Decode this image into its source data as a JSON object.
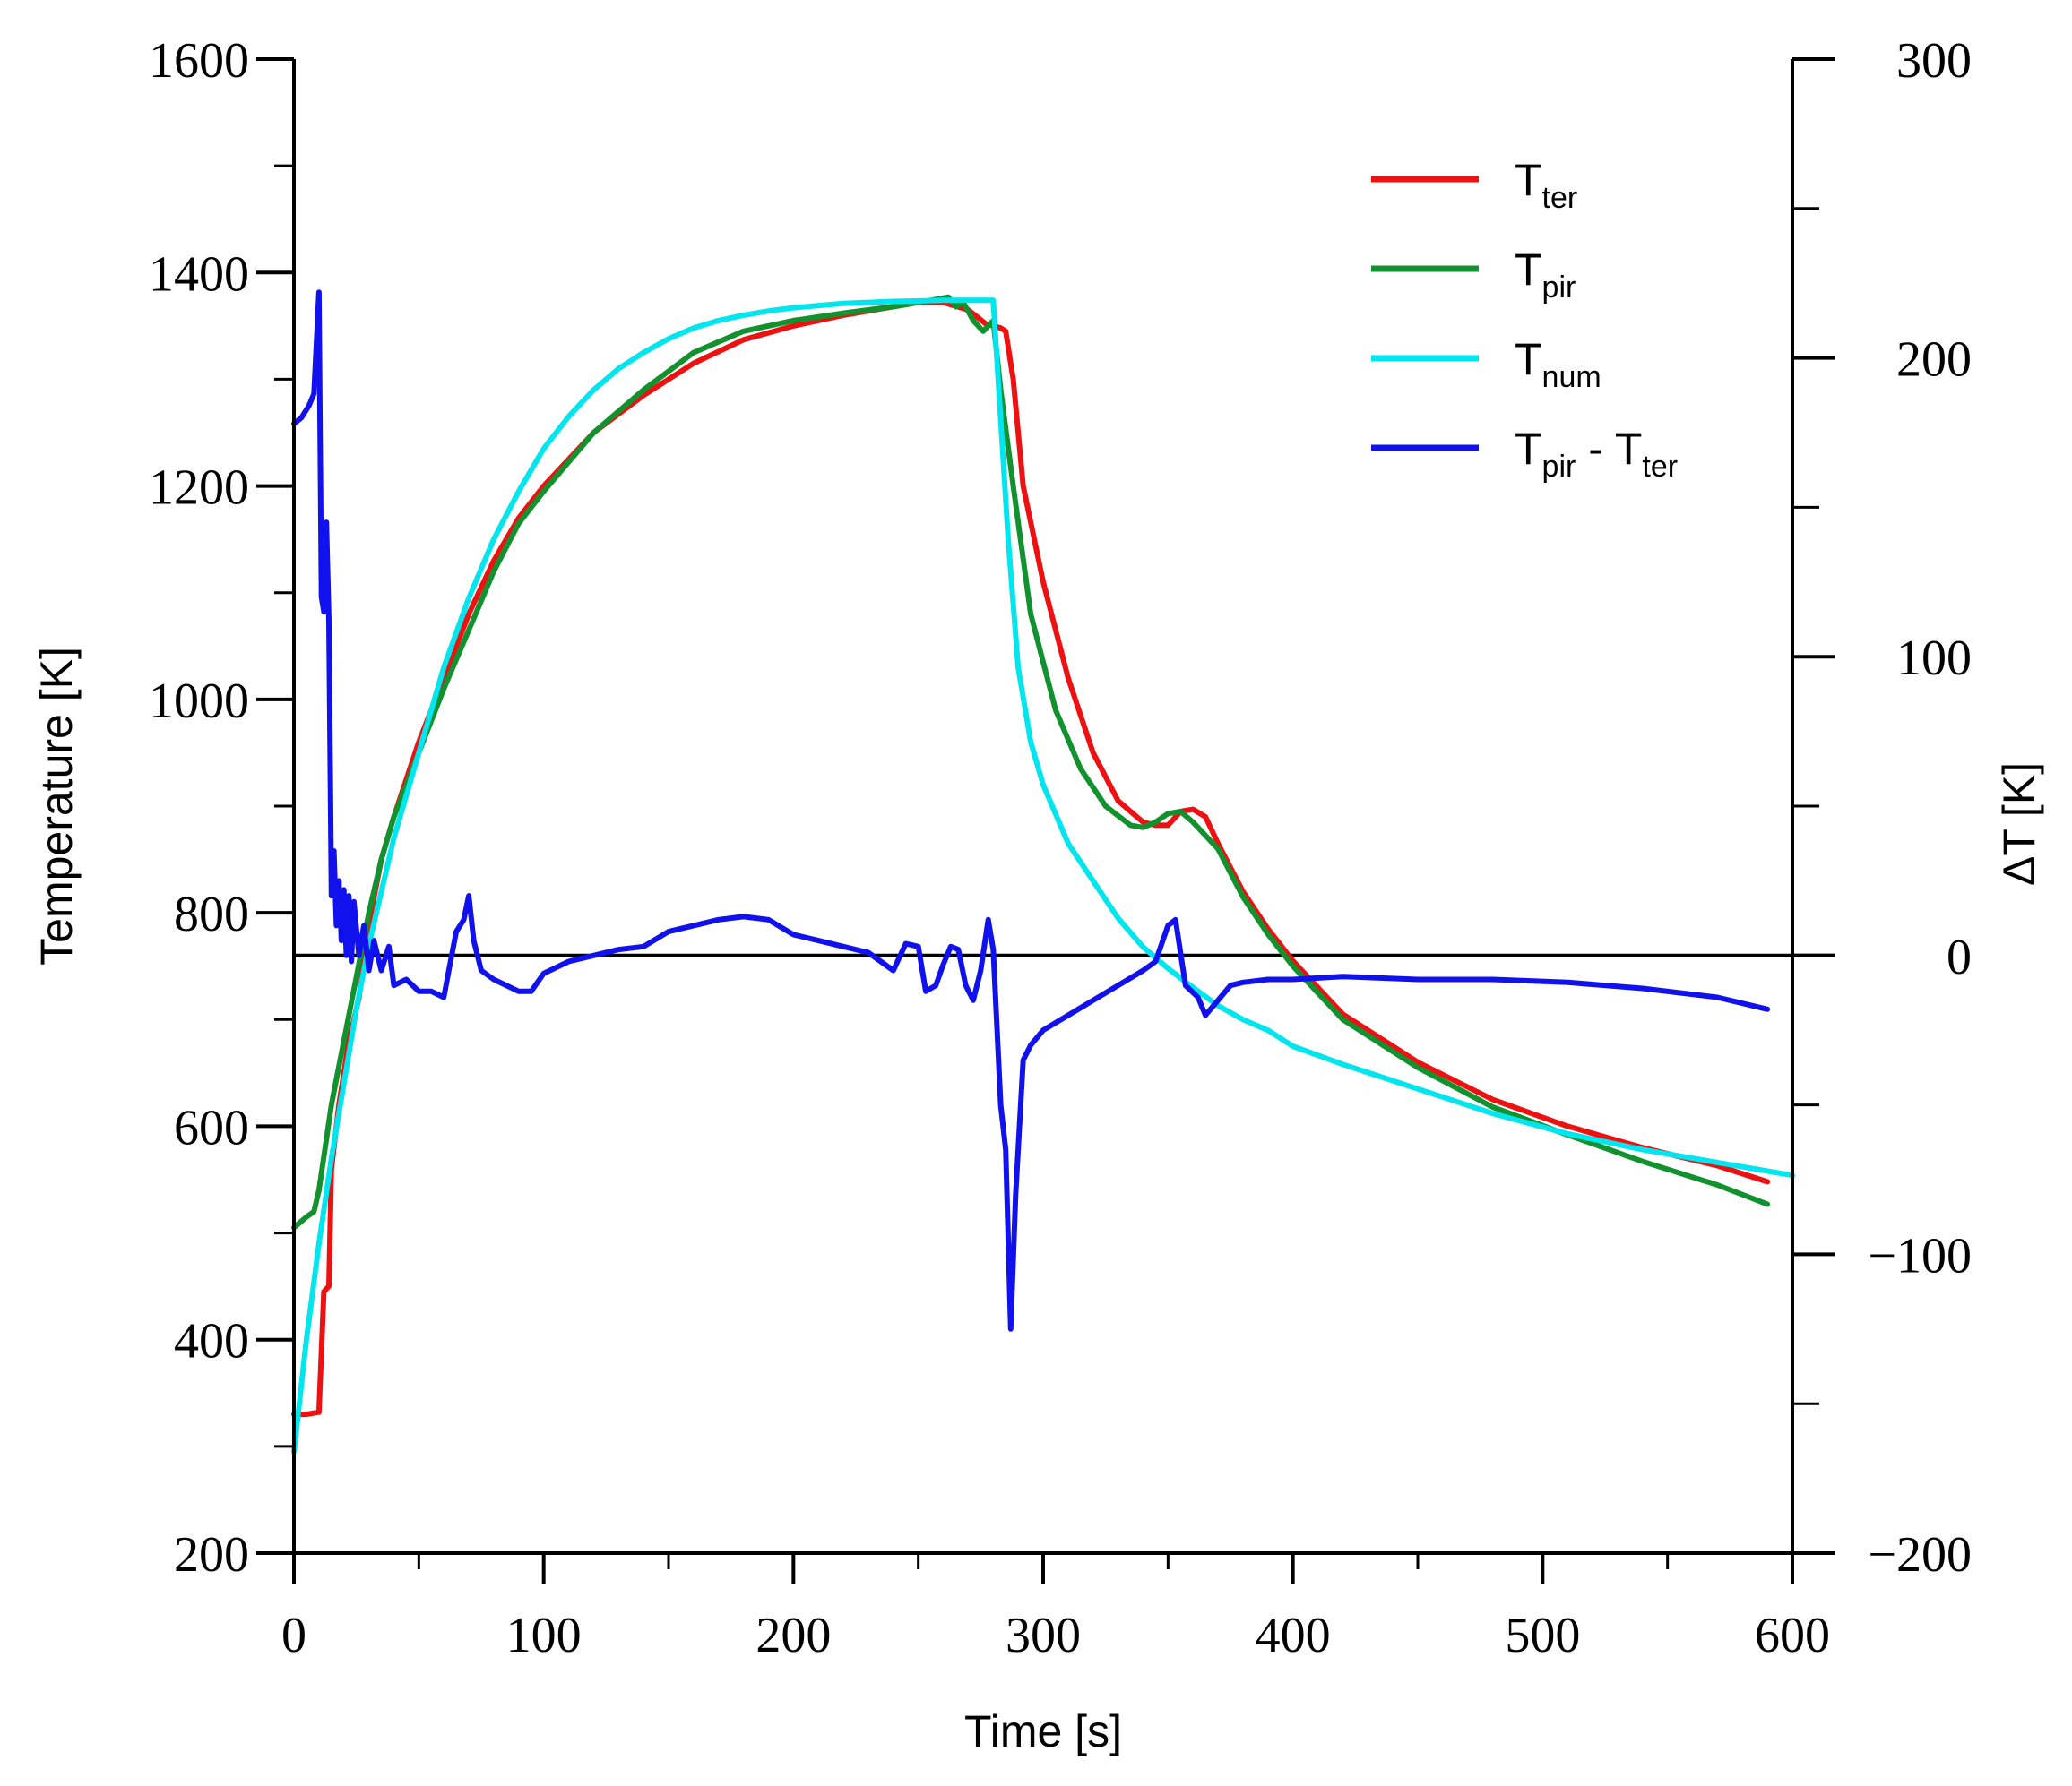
{
  "chart_data": {
    "type": "line",
    "x_axis": {
      "label": "Time [s]",
      "range": [
        0,
        600
      ],
      "ticks": [
        0,
        100,
        200,
        300,
        400,
        500,
        600
      ],
      "tick_labels": [
        "0",
        "100",
        "200",
        "300",
        "400",
        "500",
        "600"
      ]
    },
    "y_axis_left": {
      "label": "Temperature [K]",
      "range": [
        200,
        1600
      ],
      "ticks": [
        200,
        400,
        600,
        800,
        1000,
        1200,
        1400,
        1600
      ],
      "tick_labels": [
        "200",
        "400",
        "600",
        "800",
        "1000",
        "1200",
        "1400",
        "1600"
      ]
    },
    "y_axis_right": {
      "label": "ΔT [K]",
      "range": [
        -200,
        300
      ],
      "ticks": [
        -200,
        -100,
        0,
        100,
        200,
        300
      ],
      "tick_labels": [
        "−200",
        "−100",
        "0",
        "100",
        "200",
        "300"
      ]
    },
    "zero_line": 0,
    "legend": {
      "position": "top-right",
      "entries": [
        {
          "main": "T",
          "sub": "ter",
          "suffix_main": "",
          "suffix_sub": "",
          "series": "T_ter"
        },
        {
          "main": "T",
          "sub": "pir",
          "suffix_main": "",
          "suffix_sub": "",
          "series": "T_pir"
        },
        {
          "main": "T",
          "sub": "num",
          "suffix_main": "",
          "suffix_sub": "",
          "series": "T_num"
        },
        {
          "main": "T",
          "sub": "pir",
          "suffix_main": " - T",
          "suffix_sub": "ter",
          "series": "T_pir - T_ter"
        }
      ]
    },
    "series": [
      {
        "name": "T_ter",
        "axis": "left",
        "color": "#ee1111",
        "points": [
          [
            0,
            330
          ],
          [
            5,
            330
          ],
          [
            10,
            332
          ],
          [
            12,
            445
          ],
          [
            14,
            450
          ],
          [
            15,
            560
          ],
          [
            18,
            620
          ],
          [
            22,
            680
          ],
          [
            26,
            720
          ],
          [
            30,
            790
          ],
          [
            35,
            850
          ],
          [
            40,
            890
          ],
          [
            50,
            960
          ],
          [
            60,
            1020
          ],
          [
            70,
            1080
          ],
          [
            80,
            1130
          ],
          [
            90,
            1170
          ],
          [
            100,
            1200
          ],
          [
            120,
            1250
          ],
          [
            140,
            1285
          ],
          [
            160,
            1315
          ],
          [
            180,
            1337
          ],
          [
            200,
            1350
          ],
          [
            220,
            1360
          ],
          [
            240,
            1368
          ],
          [
            250,
            1372
          ],
          [
            260,
            1372
          ],
          [
            270,
            1365
          ],
          [
            277,
            1352
          ],
          [
            283,
            1348
          ],
          [
            285,
            1345
          ],
          [
            288,
            1300
          ],
          [
            292,
            1200
          ],
          [
            300,
            1110
          ],
          [
            310,
            1020
          ],
          [
            320,
            950
          ],
          [
            330,
            905
          ],
          [
            340,
            885
          ],
          [
            345,
            882
          ],
          [
            350,
            882
          ],
          [
            355,
            895
          ],
          [
            360,
            897
          ],
          [
            365,
            890
          ],
          [
            370,
            865
          ],
          [
            380,
            820
          ],
          [
            390,
            785
          ],
          [
            400,
            755
          ],
          [
            420,
            705
          ],
          [
            450,
            660
          ],
          [
            480,
            625
          ],
          [
            510,
            600
          ],
          [
            540,
            580
          ],
          [
            570,
            563
          ],
          [
            590,
            548
          ]
        ]
      },
      {
        "name": "T_pir",
        "axis": "left",
        "color": "#11922f",
        "points": [
          [
            0,
            505
          ],
          [
            5,
            515
          ],
          [
            8,
            520
          ],
          [
            10,
            540
          ],
          [
            15,
            620
          ],
          [
            20,
            680
          ],
          [
            25,
            740
          ],
          [
            30,
            800
          ],
          [
            35,
            850
          ],
          [
            40,
            890
          ],
          [
            50,
            950
          ],
          [
            60,
            1010
          ],
          [
            70,
            1065
          ],
          [
            80,
            1120
          ],
          [
            90,
            1165
          ],
          [
            100,
            1195
          ],
          [
            120,
            1250
          ],
          [
            140,
            1290
          ],
          [
            160,
            1325
          ],
          [
            180,
            1345
          ],
          [
            200,
            1355
          ],
          [
            220,
            1362
          ],
          [
            240,
            1368
          ],
          [
            255,
            1374
          ],
          [
            262,
            1377
          ],
          [
            265,
            1368
          ],
          [
            268,
            1372
          ],
          [
            272,
            1355
          ],
          [
            276,
            1345
          ],
          [
            280,
            1355
          ],
          [
            283,
            1290
          ],
          [
            288,
            1200
          ],
          [
            295,
            1080
          ],
          [
            305,
            990
          ],
          [
            315,
            935
          ],
          [
            325,
            900
          ],
          [
            335,
            882
          ],
          [
            340,
            880
          ],
          [
            345,
            885
          ],
          [
            350,
            893
          ],
          [
            355,
            895
          ],
          [
            360,
            885
          ],
          [
            370,
            860
          ],
          [
            380,
            815
          ],
          [
            390,
            780
          ],
          [
            400,
            750
          ],
          [
            420,
            700
          ],
          [
            450,
            655
          ],
          [
            480,
            618
          ],
          [
            510,
            592
          ],
          [
            540,
            567
          ],
          [
            570,
            545
          ],
          [
            590,
            527
          ]
        ]
      },
      {
        "name": "T_num",
        "axis": "left",
        "color": "#00e5ee",
        "points": [
          [
            0,
            295
          ],
          [
            5,
            400
          ],
          [
            10,
            490
          ],
          [
            15,
            570
          ],
          [
            20,
            640
          ],
          [
            25,
            710
          ],
          [
            30,
            770
          ],
          [
            40,
            870
          ],
          [
            50,
            950
          ],
          [
            60,
            1030
          ],
          [
            70,
            1095
          ],
          [
            80,
            1150
          ],
          [
            90,
            1195
          ],
          [
            100,
            1235
          ],
          [
            110,
            1265
          ],
          [
            120,
            1290
          ],
          [
            130,
            1310
          ],
          [
            140,
            1325
          ],
          [
            150,
            1338
          ],
          [
            160,
            1348
          ],
          [
            170,
            1355
          ],
          [
            180,
            1360
          ],
          [
            190,
            1364
          ],
          [
            200,
            1367
          ],
          [
            220,
            1371
          ],
          [
            240,
            1373
          ],
          [
            260,
            1374
          ],
          [
            280,
            1374
          ],
          [
            282,
            1300
          ],
          [
            286,
            1150
          ],
          [
            290,
            1030
          ],
          [
            295,
            960
          ],
          [
            300,
            920
          ],
          [
            310,
            865
          ],
          [
            320,
            830
          ],
          [
            330,
            795
          ],
          [
            340,
            768
          ],
          [
            350,
            748
          ],
          [
            360,
            730
          ],
          [
            370,
            713
          ],
          [
            380,
            700
          ],
          [
            390,
            690
          ],
          [
            400,
            675
          ],
          [
            420,
            658
          ],
          [
            450,
            635
          ],
          [
            480,
            612
          ],
          [
            510,
            593
          ],
          [
            540,
            578
          ],
          [
            570,
            566
          ],
          [
            600,
            554
          ]
        ]
      },
      {
        "name": "T_pir - T_ter",
        "axis": "right",
        "color": "#1111ee",
        "points": [
          [
            0,
            178
          ],
          [
            3,
            180
          ],
          [
            6,
            184
          ],
          [
            8,
            188
          ],
          [
            10,
            222
          ],
          [
            11,
            120
          ],
          [
            12,
            115
          ],
          [
            13,
            145
          ],
          [
            14,
            112
          ],
          [
            15,
            20
          ],
          [
            16,
            35
          ],
          [
            17,
            10
          ],
          [
            18,
            25
          ],
          [
            19,
            5
          ],
          [
            20,
            22
          ],
          [
            21,
            0
          ],
          [
            22,
            20
          ],
          [
            23,
            -2
          ],
          [
            24,
            18
          ],
          [
            26,
            0
          ],
          [
            28,
            10
          ],
          [
            30,
            -5
          ],
          [
            32,
            5
          ],
          [
            35,
            -5
          ],
          [
            38,
            3
          ],
          [
            40,
            -10
          ],
          [
            45,
            -8
          ],
          [
            50,
            -12
          ],
          [
            55,
            -12
          ],
          [
            60,
            -14
          ],
          [
            62,
            -5
          ],
          [
            65,
            8
          ],
          [
            68,
            12
          ],
          [
            70,
            20
          ],
          [
            72,
            5
          ],
          [
            75,
            -5
          ],
          [
            80,
            -8
          ],
          [
            85,
            -10
          ],
          [
            90,
            -12
          ],
          [
            95,
            -12
          ],
          [
            100,
            -6
          ],
          [
            110,
            -2
          ],
          [
            120,
            0
          ],
          [
            130,
            2
          ],
          [
            140,
            3
          ],
          [
            150,
            8
          ],
          [
            160,
            10
          ],
          [
            170,
            12
          ],
          [
            180,
            13
          ],
          [
            190,
            12
          ],
          [
            200,
            7
          ],
          [
            210,
            5
          ],
          [
            220,
            3
          ],
          [
            230,
            1
          ],
          [
            240,
            -5
          ],
          [
            245,
            4
          ],
          [
            250,
            3
          ],
          [
            253,
            -12
          ],
          [
            257,
            -10
          ],
          [
            260,
            -3
          ],
          [
            263,
            3
          ],
          [
            266,
            2
          ],
          [
            269,
            -10
          ],
          [
            272,
            -15
          ],
          [
            275,
            -5
          ],
          [
            278,
            12
          ],
          [
            280,
            2
          ],
          [
            283,
            -50
          ],
          [
            285,
            -65
          ],
          [
            287,
            -125
          ],
          [
            289,
            -80
          ],
          [
            292,
            -35
          ],
          [
            295,
            -30
          ],
          [
            300,
            -25
          ],
          [
            310,
            -20
          ],
          [
            320,
            -15
          ],
          [
            330,
            -10
          ],
          [
            340,
            -5
          ],
          [
            345,
            -2
          ],
          [
            350,
            10
          ],
          [
            353,
            12
          ],
          [
            357,
            -10
          ],
          [
            362,
            -14
          ],
          [
            365,
            -20
          ],
          [
            370,
            -15
          ],
          [
            375,
            -10
          ],
          [
            380,
            -9
          ],
          [
            390,
            -8
          ],
          [
            400,
            -8
          ],
          [
            420,
            -7
          ],
          [
            450,
            -8
          ],
          [
            480,
            -8
          ],
          [
            510,
            -9
          ],
          [
            540,
            -11
          ],
          [
            570,
            -14
          ],
          [
            590,
            -18
          ]
        ]
      }
    ]
  }
}
